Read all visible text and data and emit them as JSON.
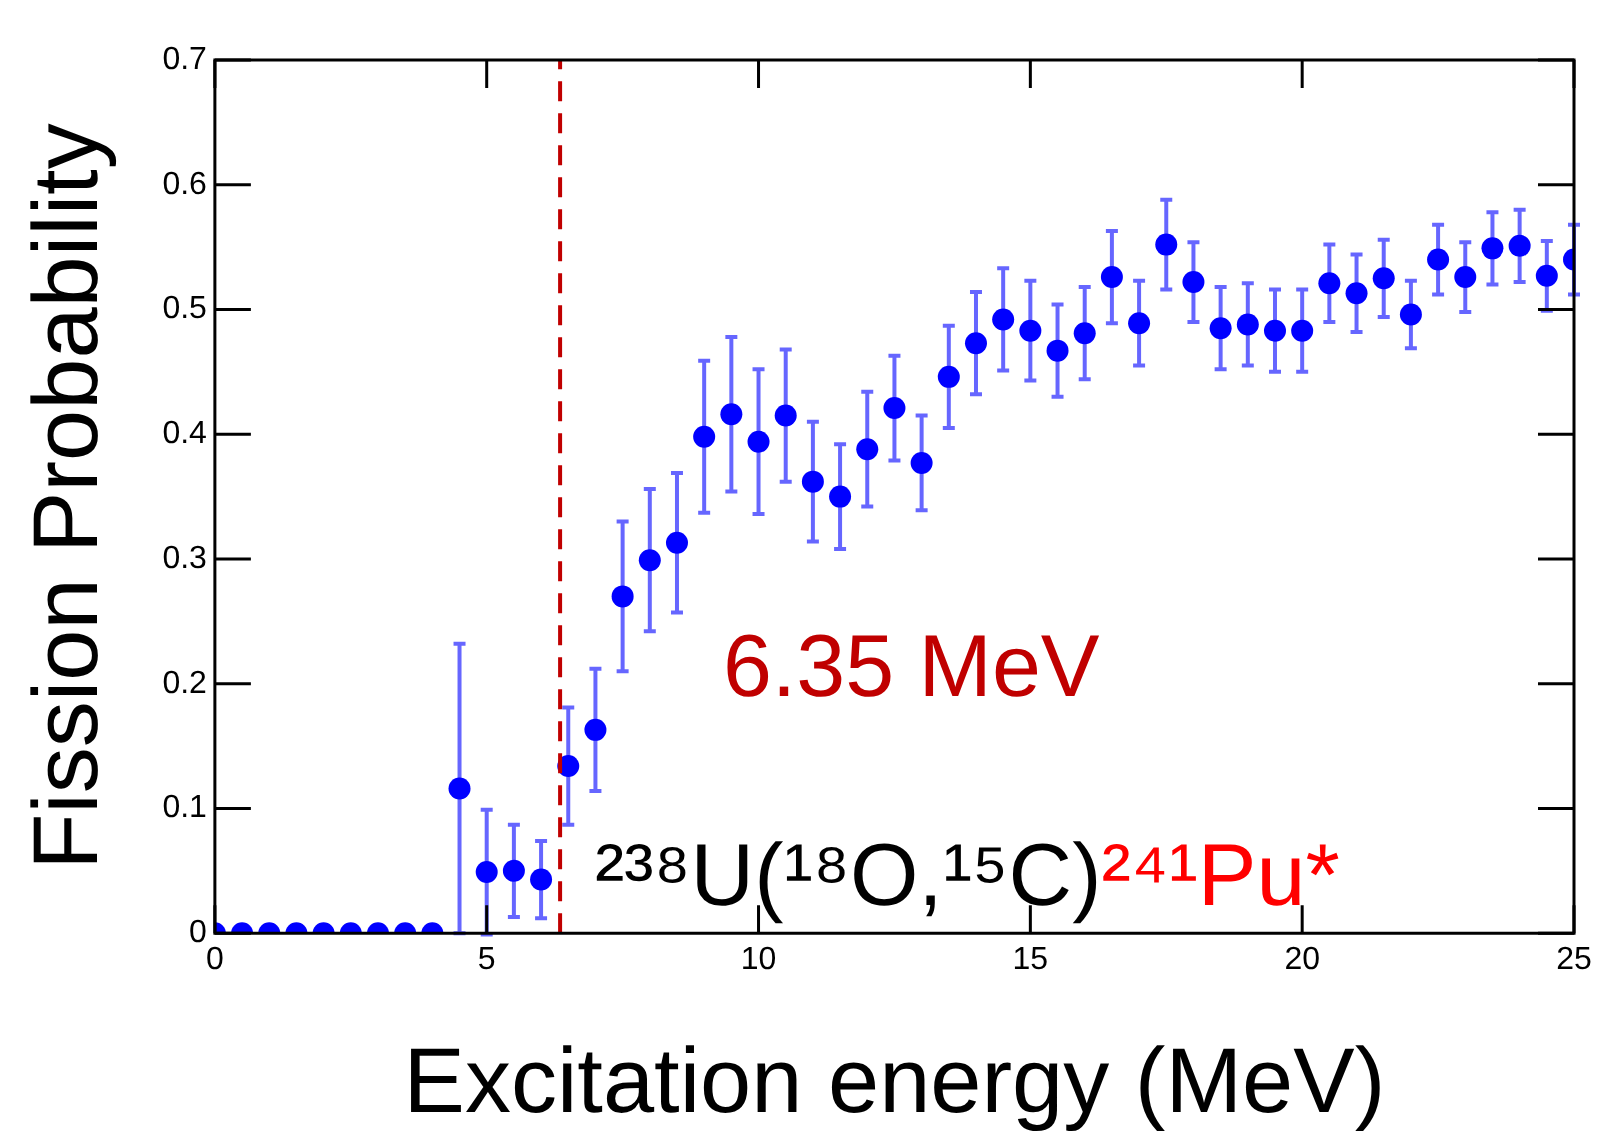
{
  "chart_data": {
    "type": "scatter",
    "xlabel": "Excitation energy (MeV)",
    "ylabel": "Fission Probability",
    "x": [
      0,
      0.5,
      1,
      1.5,
      2,
      2.5,
      3,
      3.5,
      4,
      4.5,
      5,
      5.5,
      6,
      6.5,
      7,
      7.5,
      8,
      8.5,
      9,
      9.5,
      10,
      10.5,
      11,
      11.5,
      12,
      12.5,
      13,
      13.5,
      14,
      14.5,
      15,
      15.5,
      16,
      16.5,
      17,
      17.5,
      18,
      18.5,
      19,
      19.5,
      20,
      20.5,
      21,
      21.5,
      22,
      22.5,
      23,
      23.5,
      24,
      24.5,
      25
    ],
    "values": [
      0,
      0,
      0,
      0,
      0,
      0,
      0,
      0,
      0,
      0.116,
      0.049,
      0.05,
      0.043,
      0.134,
      0.163,
      0.27,
      0.299,
      0.313,
      0.398,
      0.416,
      0.394,
      0.415,
      0.362,
      0.35,
      0.388,
      0.421,
      0.377,
      0.446,
      0.473,
      0.492,
      0.483,
      0.467,
      0.481,
      0.526,
      0.489,
      0.552,
      0.522,
      0.485,
      0.488,
      0.483,
      0.483,
      0.521,
      0.513,
      0.525,
      0.496,
      0.54,
      0.526,
      0.549,
      0.551,
      0.527,
      0.54
    ],
    "errors": [
      null,
      null,
      null,
      null,
      null,
      null,
      null,
      null,
      null,
      0.116,
      0.05,
      0.037,
      0.031,
      0.047,
      0.049,
      0.06,
      0.057,
      0.056,
      0.061,
      0.062,
      0.058,
      0.053,
      0.048,
      0.042,
      0.046,
      0.042,
      0.038,
      0.041,
      0.041,
      0.041,
      0.04,
      0.037,
      0.037,
      0.037,
      0.034,
      0.036,
      0.032,
      0.033,
      0.033,
      0.033,
      0.033,
      0.031,
      0.031,
      0.031,
      0.027,
      0.028,
      0.028,
      0.029,
      0.029,
      0.028,
      0.028
    ],
    "color": "#0000ff",
    "marker": "circle",
    "xlim": [
      0,
      25
    ],
    "xticks": [
      0,
      5,
      10,
      15,
      20,
      25
    ],
    "ylim": [
      0,
      0.7
    ],
    "yticks": [
      0,
      0.1,
      0.2,
      0.3,
      0.4,
      0.5,
      0.6,
      0.7
    ],
    "grid": false,
    "legend": false,
    "ref_lines": [
      {
        "axis": "x",
        "value": 6.35,
        "label": "6.35 MeV",
        "color": "#c00000",
        "line_style": "dashed"
      }
    ],
    "annotations": [
      "²³⁸U(¹⁸O,¹⁵C)",
      "²⁴¹Pu*"
    ]
  }
}
